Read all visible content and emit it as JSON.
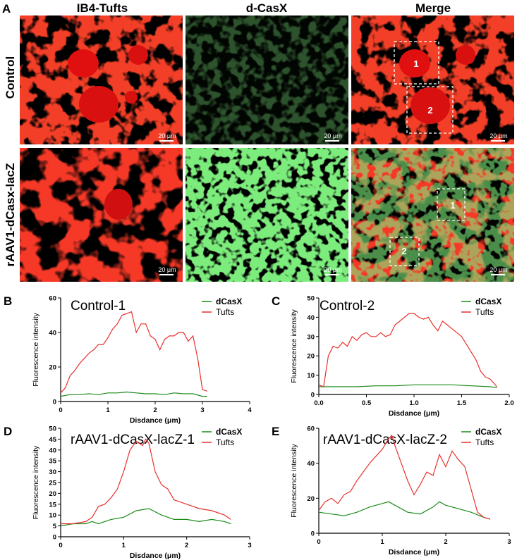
{
  "panel_letters": {
    "A": "A",
    "B": "B",
    "C": "C",
    "D": "D",
    "E": "E"
  },
  "micrograph": {
    "columns": [
      "IB4-Tufts",
      "d-CasX",
      "Merge"
    ],
    "rows": [
      "Control",
      "rAAV1-dCasx-lacZ"
    ],
    "scale_bar": "20 μm",
    "box_labels": [
      "1",
      "2"
    ]
  },
  "colors": {
    "dCasX": "#1a8a1a",
    "Tufts": "#e8302c"
  },
  "chart_data": [
    {
      "type": "line",
      "title": "Control-1",
      "xlabel": "Disdance (μm)",
      "ylabel": "Fluorescence intensity",
      "xlim": [
        0,
        4
      ],
      "ylim": [
        0,
        60
      ],
      "xticks": [
        0,
        1,
        2,
        3,
        4
      ],
      "yticks": [
        0,
        20,
        40,
        60
      ],
      "legend": "top-right",
      "series": [
        {
          "name": "dCasX",
          "x": [
            0,
            0.2,
            0.4,
            0.6,
            0.8,
            1.0,
            1.2,
            1.4,
            1.6,
            1.8,
            2.0,
            2.2,
            2.4,
            2.6,
            2.8,
            3.0,
            3.1
          ],
          "y": [
            3,
            4,
            4,
            4.5,
            4,
            5,
            5,
            5.5,
            5,
            4.5,
            4.5,
            4,
            5,
            4.5,
            4.5,
            3,
            3
          ]
        },
        {
          "name": "Tufts",
          "x": [
            0,
            0.1,
            0.2,
            0.3,
            0.4,
            0.5,
            0.6,
            0.7,
            0.8,
            0.9,
            1.0,
            1.1,
            1.2,
            1.3,
            1.4,
            1.5,
            1.6,
            1.7,
            1.8,
            1.9,
            2.0,
            2.1,
            2.2,
            2.3,
            2.4,
            2.5,
            2.6,
            2.7,
            2.8,
            2.9,
            3.0,
            3.1
          ],
          "y": [
            5,
            8,
            15,
            18,
            22,
            25,
            28,
            30,
            33,
            33,
            37,
            42,
            45,
            50,
            51,
            52,
            40,
            45,
            45,
            38,
            36,
            30,
            36,
            38,
            38,
            40,
            40,
            35,
            38,
            25,
            7,
            6
          ]
        }
      ]
    },
    {
      "type": "line",
      "title": "Control-2",
      "xlabel": "Disdance (μm)",
      "ylabel": "Fluorescence intensity",
      "xlim": [
        0,
        2
      ],
      "ylim": [
        0,
        50
      ],
      "xticks": [
        0.0,
        0.5,
        1.0,
        1.5,
        2.0
      ],
      "yticks": [
        0,
        10,
        20,
        30,
        40,
        50
      ],
      "legend": "top-right",
      "series": [
        {
          "name": "dCasX",
          "x": [
            0,
            0.2,
            0.4,
            0.6,
            0.8,
            1.0,
            1.2,
            1.4,
            1.6,
            1.8,
            1.87
          ],
          "y": [
            4,
            4,
            4,
            4.5,
            4.5,
            5,
            5,
            5,
            4.5,
            4,
            3.5
          ]
        },
        {
          "name": "Tufts",
          "x": [
            0,
            0.05,
            0.1,
            0.15,
            0.2,
            0.25,
            0.3,
            0.35,
            0.4,
            0.45,
            0.5,
            0.55,
            0.6,
            0.65,
            0.7,
            0.75,
            0.8,
            0.85,
            0.9,
            0.95,
            1.0,
            1.05,
            1.1,
            1.15,
            1.2,
            1.25,
            1.3,
            1.35,
            1.4,
            1.45,
            1.5,
            1.55,
            1.6,
            1.65,
            1.7,
            1.75,
            1.8,
            1.87
          ],
          "y": [
            5,
            4,
            20,
            25,
            24,
            27,
            25,
            30,
            28,
            31,
            32,
            30,
            30,
            32,
            30,
            31,
            36,
            38,
            40,
            42,
            42,
            40,
            39,
            40,
            36,
            33,
            38,
            36,
            34,
            32,
            30,
            26,
            22,
            18,
            12,
            9,
            8,
            4
          ]
        }
      ]
    },
    {
      "type": "line",
      "title": "rAAV1-dCasX-lacZ-1",
      "xlabel": "Disdance (μm)",
      "ylabel": "Fluorescence intensity",
      "xlim": [
        0,
        3
      ],
      "ylim": [
        0,
        50
      ],
      "xticks": [
        0,
        1,
        2,
        3
      ],
      "yticks": [
        0,
        5,
        10,
        15,
        20,
        25,
        30,
        35,
        40,
        45,
        50
      ],
      "legend": "top-right",
      "series": [
        {
          "name": "dCasX",
          "x": [
            0,
            0.2,
            0.4,
            0.5,
            0.6,
            0.8,
            1.0,
            1.2,
            1.4,
            1.6,
            1.8,
            2.0,
            2.2,
            2.4,
            2.6,
            2.7
          ],
          "y": [
            5,
            6,
            6,
            7,
            6,
            8,
            9,
            12,
            13,
            10,
            8,
            8,
            7,
            8,
            7,
            6
          ]
        },
        {
          "name": "Tufts",
          "x": [
            0,
            0.2,
            0.4,
            0.5,
            0.6,
            0.7,
            0.8,
            0.9,
            1.0,
            1.1,
            1.2,
            1.3,
            1.35,
            1.4,
            1.5,
            1.6,
            1.7,
            1.8,
            1.9,
            2.0,
            2.2,
            2.4,
            2.6,
            2.7
          ],
          "y": [
            6,
            6,
            7,
            9,
            14,
            15,
            18,
            22,
            30,
            40,
            44,
            42,
            45,
            43,
            30,
            24,
            22,
            17,
            16,
            15,
            13,
            12,
            10,
            8
          ]
        }
      ]
    },
    {
      "type": "line",
      "title": "rAAV1-dCasX-lacZ-2",
      "xlabel": "Disdance (μm)",
      "ylabel": "Fluorescence intensity",
      "xlim": [
        0,
        3
      ],
      "ylim": [
        0,
        60
      ],
      "xticks": [
        0,
        1,
        2,
        3
      ],
      "yticks": [
        0,
        20,
        40,
        60
      ],
      "legend": "top-right",
      "series": [
        {
          "name": "dCasX",
          "x": [
            0,
            0.2,
            0.4,
            0.6,
            0.8,
            1.0,
            1.1,
            1.2,
            1.4,
            1.6,
            1.8,
            1.9,
            2.0,
            2.2,
            2.4,
            2.6,
            2.7
          ],
          "y": [
            12,
            11,
            10,
            12,
            15,
            17,
            18,
            16,
            12,
            11,
            15,
            18,
            16,
            14,
            12,
            9,
            8
          ]
        },
        {
          "name": "Tufts",
          "x": [
            0,
            0.1,
            0.2,
            0.3,
            0.4,
            0.5,
            0.6,
            0.7,
            0.8,
            0.9,
            1.0,
            1.1,
            1.15,
            1.2,
            1.3,
            1.4,
            1.5,
            1.6,
            1.7,
            1.8,
            1.9,
            2.0,
            2.1,
            2.2,
            2.3,
            2.4,
            2.5,
            2.6,
            2.7
          ],
          "y": [
            13,
            18,
            20,
            17,
            22,
            24,
            30,
            35,
            40,
            44,
            48,
            54,
            56,
            50,
            40,
            30,
            22,
            28,
            35,
            33,
            45,
            38,
            47,
            42,
            38,
            25,
            12,
            9,
            8
          ]
        }
      ]
    }
  ]
}
